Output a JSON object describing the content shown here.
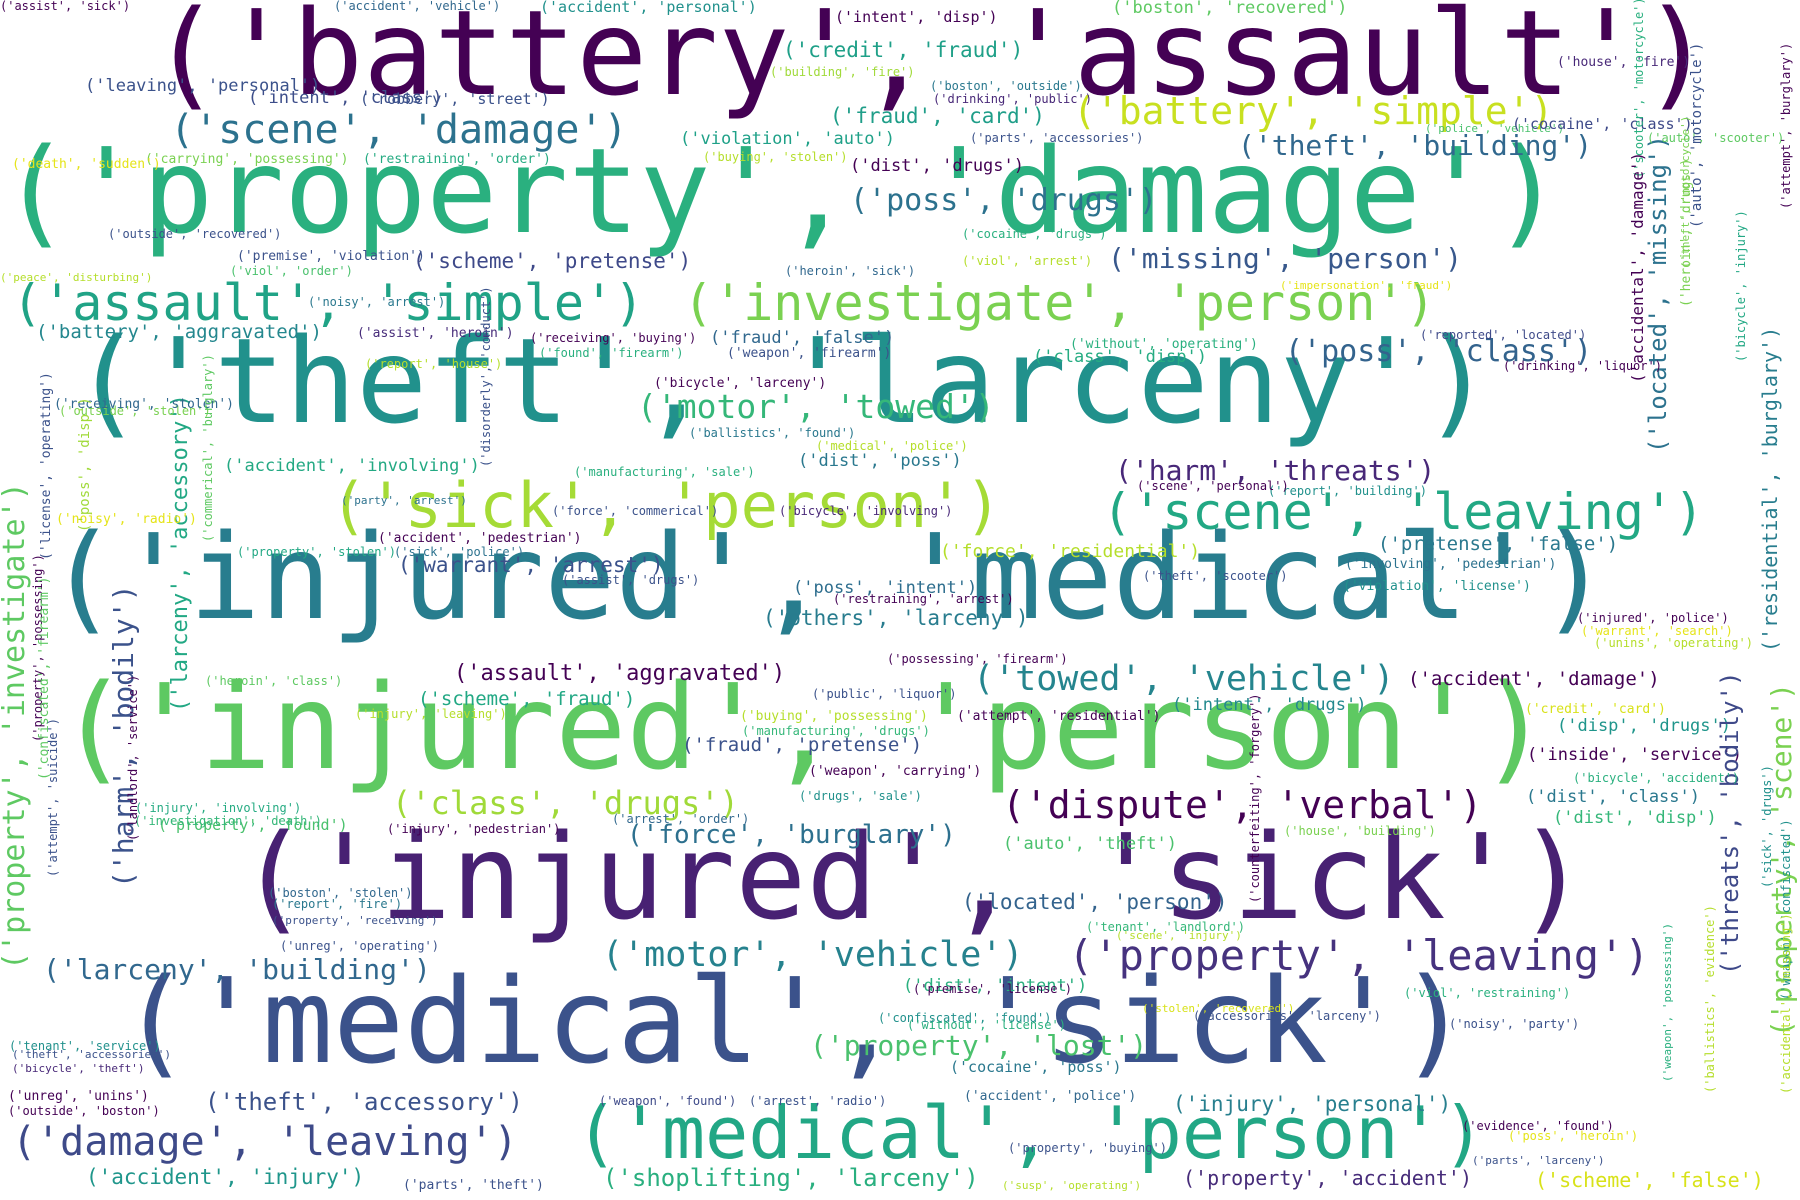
{
  "words": [
    {
      "text": "('battery', 'assault')",
      "color": "#440154"
    },
    {
      "text": "('property', 'damage')",
      "color": "#2ab07f"
    },
    {
      "text": "('theft', 'larceny')",
      "color": "#21918c"
    },
    {
      "text": "('injured', 'medical')",
      "color": "#287d8e"
    },
    {
      "text": "('injured', 'person')",
      "color": "#5ec962"
    },
    {
      "text": "('injured', 'sick')",
      "color": "#482173"
    },
    {
      "text": "('medical', 'sick')",
      "color": "#3b528b"
    },
    {
      "text": "('sick', 'person')",
      "color": "#a5db36"
    },
    {
      "text": "('assault', 'simple')",
      "color": "#20a386"
    },
    {
      "text": "('investigate', 'person')",
      "color": "#7ad151"
    },
    {
      "text": "('medical', 'person')",
      "color": "#22a785"
    },
    {
      "text": "('scene', 'leaving')",
      "color": "#22a884"
    },
    {
      "text": "('scene', 'damage')",
      "color": "#2c728e"
    },
    {
      "text": "('battery', 'simple')",
      "color": "#c8e020"
    },
    {
      "text": "('damage', 'leaving')",
      "color": "#3e4a89"
    },
    {
      "text": "('property', 'leaving')",
      "color": "#46327e"
    },
    {
      "text": "('towed', 'vehicle')",
      "color": "#25858e"
    },
    {
      "text": "('motor', 'vehicle')",
      "color": "#26828e"
    },
    {
      "text": "('dispute', 'verbal')",
      "color": "#440154"
    },
    {
      "text": "('motor', 'towed')",
      "color": "#35b779"
    },
    {
      "text": "('theft', 'building')",
      "color": "#31688e"
    },
    {
      "text": "('poss', 'drugs')",
      "color": "#2c728e"
    },
    {
      "text": "('poss', 'class')",
      "color": "#33638d"
    },
    {
      "text": "('missing', 'person')",
      "color": "#38588c"
    },
    {
      "text": "('harm', 'threats')",
      "color": "#482878"
    },
    {
      "text": "('class', 'drugs')",
      "color": "#a0da39"
    },
    {
      "text": "('larceny', 'building')",
      "color": "#31688e"
    },
    {
      "text": "('shoplifting', 'larceny')",
      "color": "#29af7f"
    },
    {
      "text": "('property', 'lost')",
      "color": "#4ac16d"
    },
    {
      "text": "('force', 'burglary')",
      "color": "#2d708e"
    },
    {
      "text": "('theft', 'accessory')",
      "color": "#3b528b"
    },
    {
      "text": "('assault', 'aggravated')",
      "color": "#440154"
    },
    {
      "text": "('fraud', 'card')",
      "color": "#1f9e89"
    },
    {
      "text": "('credit', 'fraud')",
      "color": "#1fa088"
    },
    {
      "text": "('warrant', 'arrest')",
      "color": "#3b528b"
    },
    {
      "text": "('others', 'larceny')",
      "color": "#287c8e"
    },
    {
      "text": "('accident', 'injury')",
      "color": "#1f968b"
    },
    {
      "text": "('property', 'accident')",
      "color": "#472c7a"
    },
    {
      "text": "('scheme', 'false')",
      "color": "#d8e219"
    },
    {
      "text": "('scheme', 'pretense')",
      "color": "#3e4989"
    },
    {
      "text": "('located', 'person')",
      "color": "#33638d"
    },
    {
      "text": "('injury', 'personal')",
      "color": "#277f8e"
    },
    {
      "text": "('pretense', 'false')",
      "color": "#2a788e"
    },
    {
      "text": "('fraud', 'pretense')",
      "color": "#3b528b"
    },
    {
      "text": "('accident', 'damage')",
      "color": "#440154"
    },
    {
      "text": "('scheme', 'fraud')",
      "color": "#22a884"
    },
    {
      "text": "('battery', 'aggravated')",
      "color": "#24878e"
    },
    {
      "text": "('intent', 'class')",
      "color": "#3d4e8a"
    },
    {
      "text": "('dist', 'drugs')",
      "color": "#440154"
    },
    {
      "text": "('accident', 'involving')",
      "color": "#23a983"
    },
    {
      "text": "('violation', 'auto')",
      "color": "#1fa188"
    },
    {
      "text": "('fraud', 'false')",
      "color": "#31688e"
    },
    {
      "text": "('class', 'disp')",
      "color": "#25ac82"
    },
    {
      "text": "('dist', 'poss')",
      "color": "#2a788e"
    },
    {
      "text": "('poss', 'intent')",
      "color": "#2e6e8e"
    },
    {
      "text": "('intent', 'drugs')",
      "color": "#23898e"
    },
    {
      "text": "('dist', 'intent')",
      "color": "#2ab07f"
    },
    {
      "text": "('dist', 'class')",
      "color": "#2a788e"
    },
    {
      "text": "('disp', 'drugs')",
      "color": "#1f958b"
    },
    {
      "text": "('dist', 'disp')",
      "color": "#35b779"
    },
    {
      "text": "('inside', 'service')",
      "color": "#440154"
    },
    {
      "text": "('auto', 'theft')",
      "color": "#4ac16d"
    },
    {
      "text": "('robbery', 'street')",
      "color": "#3b528b"
    },
    {
      "text": "('boston', 'recovered')",
      "color": "#5ec962"
    },
    {
      "text": "('force', 'residential')",
      "color": "#b5de2b"
    },
    {
      "text": "('property', 'found')",
      "color": "#4ac16d"
    },
    {
      "text": "('cocaine', 'poss')",
      "color": "#2a788e"
    },
    {
      "text": "('intent', 'disp')",
      "color": "#440154"
    },
    {
      "text": "('accident', 'pedestrian')",
      "color": "#440154"
    },
    {
      "text": "('carrying', 'possessing')",
      "color": "#7ad151"
    },
    {
      "text": "('restraining', 'order')",
      "color": "#25ab82"
    },
    {
      "text": "('accident', 'personal')",
      "color": "#21918c"
    },
    {
      "text": "('harm', 'bodily')",
      "color": "#3b528b",
      "vertical": true
    },
    {
      "text": "('larceny', 'accessory')",
      "color": "#22a884",
      "vertical": true
    },
    {
      "text": "('property', 'investigate')",
      "color": "#5ec962",
      "vertical": true
    },
    {
      "text": "('located', 'missing')",
      "color": "#2c728e",
      "vertical": true
    },
    {
      "text": "('residential', 'burglary')",
      "color": "#287d8e",
      "vertical": true
    },
    {
      "text": "('threats', 'bodily')",
      "color": "#3e4989",
      "vertical": true
    },
    {
      "text": "('property', 'scene')",
      "color": "#7ad151",
      "vertical": true
    },
    {
      "text": "('buying', 'stolen')",
      "color": "#b5de2b"
    },
    {
      "text": "('house', 'fire')",
      "color": "#482878"
    },
    {
      "text": "('building', 'fire')",
      "color": "#a0da39"
    },
    {
      "text": "('boston', 'outside')",
      "color": "#2a788e"
    },
    {
      "text": "('drinking', 'public')",
      "color": "#482878"
    },
    {
      "text": "('parts', 'accessories')",
      "color": "#3b528b"
    },
    {
      "text": "('police', 'vehicle')",
      "color": "#4ac16d"
    },
    {
      "text": "('cocaine', 'class')",
      "color": "#3e4a89"
    },
    {
      "text": "('auto', 'scooter')",
      "color": "#5ec962"
    },
    {
      "text": "('cocaine', 'drugs')",
      "color": "#2ab07f"
    },
    {
      "text": "('premise', 'violation')",
      "color": "#3b528b"
    },
    {
      "text": "('viol', 'order')",
      "color": "#4ac16d"
    },
    {
      "text": "('viol', 'arrest')",
      "color": "#b5de2b"
    },
    {
      "text": "('heroin', 'sick')",
      "color": "#31688e"
    },
    {
      "text": "('impersonation', 'fraud')",
      "color": "#e5e419"
    },
    {
      "text": "('noisy', 'arrest')",
      "color": "#2a788e"
    },
    {
      "text": "('assist', 'heroin')",
      "color": "#472c7a"
    },
    {
      "text": "('receiving', 'buying')",
      "color": "#440154"
    },
    {
      "text": "('found', 'firearm')",
      "color": "#2ab07f"
    },
    {
      "text": "('weapon', 'firearm')",
      "color": "#3b528b"
    },
    {
      "text": "('without', 'operating')",
      "color": "#2ab07f"
    },
    {
      "text": "('reported', 'located')",
      "color": "#3e4a89"
    },
    {
      "text": "('drinking', 'liquor')",
      "color": "#440154"
    },
    {
      "text": "('report', 'house')",
      "color": "#b5de2b"
    },
    {
      "text": "('bicycle', 'larceny')",
      "color": "#440154"
    },
    {
      "text": "('outside', 'stolen')",
      "color": "#7ad151"
    },
    {
      "text": "('ballistics', 'found')",
      "color": "#2a788e"
    },
    {
      "text": "('medical', 'police')",
      "color": "#b5de2b"
    },
    {
      "text": "('manufacturing', 'sale')",
      "color": "#2ab07f"
    },
    {
      "text": "('report', 'building')",
      "color": "#21918c"
    },
    {
      "text": "('scene', 'personal')",
      "color": "#440154"
    },
    {
      "text": "('party', 'arrest')",
      "color": "#2c728e"
    },
    {
      "text": "('force', 'commerical')",
      "color": "#3b528b"
    },
    {
      "text": "('bicycle', 'involving')",
      "color": "#482878"
    },
    {
      "text": "('property', 'stolen')",
      "color": "#22a884"
    },
    {
      "text": "('sick', 'police')",
      "color": "#2c728e"
    },
    {
      "text": "('assist', 'drugs')",
      "color": "#3b528b"
    },
    {
      "text": "('theft', 'scooter')",
      "color": "#3b528b"
    },
    {
      "text": "('involving', 'pedestrian')",
      "color": "#2c728e"
    },
    {
      "text": "('violation', 'license')",
      "color": "#21918c"
    },
    {
      "text": "('restraining', 'arrest')",
      "color": "#440154"
    },
    {
      "text": "('possessing', 'firearm')",
      "color": "#440154"
    },
    {
      "text": "('injured', 'police')",
      "color": "#440154"
    },
    {
      "text": "('warrant', 'search')",
      "color": "#e5e419"
    },
    {
      "text": "('unins', 'operating')",
      "color": "#b5de2b"
    },
    {
      "text": "('heroin', 'class')",
      "color": "#5ec962"
    },
    {
      "text": "('public', 'liquor')",
      "color": "#3b528b"
    },
    {
      "text": "('injury', 'leaving')",
      "color": "#b5de2b"
    },
    {
      "text": "('buying', 'possessing')",
      "color": "#b5de2b"
    },
    {
      "text": "('attempt', 'residential')",
      "color": "#440154"
    },
    {
      "text": "('credit', 'card')",
      "color": "#d8e219"
    },
    {
      "text": "('manufacturing', 'drugs')",
      "color": "#35b779"
    },
    {
      "text": "('weapon', 'carrying')",
      "color": "#440154"
    },
    {
      "text": "('injury', 'involving')",
      "color": "#25ab82"
    },
    {
      "text": "('bicycle', 'accident')",
      "color": "#2ab07f"
    },
    {
      "text": "('drugs', 'sale')",
      "color": "#21918c"
    },
    {
      "text": "('investigation', 'death')",
      "color": "#35b779"
    },
    {
      "text": "('arrest', 'order')",
      "color": "#31688e"
    },
    {
      "text": "('injury', 'pedestrian')",
      "color": "#440154"
    },
    {
      "text": "('house', 'building')",
      "color": "#7ad151"
    },
    {
      "text": "('boston', 'stolen')",
      "color": "#31688e"
    },
    {
      "text": "('property', 'receiving')",
      "color": "#3b528b"
    },
    {
      "text": "('report', 'fire')",
      "color": "#2a788e"
    },
    {
      "text": "('tenant', 'landlord')",
      "color": "#35b779"
    },
    {
      "text": "('scene', 'injury')",
      "color": "#b5de2b"
    },
    {
      "text": "('unreg', 'operating')",
      "color": "#3b528b"
    },
    {
      "text": "('premise', 'license')",
      "color": "#440154"
    },
    {
      "text": "('confiscated', 'found')",
      "color": "#21918c"
    },
    {
      "text": "('stolen', 'recovered')",
      "color": "#d8e219"
    },
    {
      "text": "('accessories', 'larceny')",
      "color": "#3b528b"
    },
    {
      "text": "('viol', 'restraining')",
      "color": "#2ab07f"
    },
    {
      "text": "('without', 'license')",
      "color": "#2ab07f"
    },
    {
      "text": "('tenant', 'service')",
      "color": "#21918c"
    },
    {
      "text": "('theft', 'accessories')",
      "color": "#3b528b"
    },
    {
      "text": "('bicycle', 'theft')",
      "color": "#482878"
    },
    {
      "text": "('noisy', 'party')",
      "color": "#3b528b"
    },
    {
      "text": "('unreg', 'unins')",
      "color": "#440154"
    },
    {
      "text": "('outside', 'boston')",
      "color": "#440154"
    },
    {
      "text": "('weapon', 'found')",
      "color": "#3e4a89"
    },
    {
      "text": "('arrest', 'radio')",
      "color": "#3b528b"
    },
    {
      "text": "('accident', 'police')",
      "color": "#31688e"
    },
    {
      "text": "('evidence', 'found')",
      "color": "#440154"
    },
    {
      "text": "('poss', 'heroin')",
      "color": "#e5e419"
    },
    {
      "text": "('property', 'buying')",
      "color": "#3b528b"
    },
    {
      "text": "('parts', 'larceny')",
      "color": "#3b528b"
    },
    {
      "text": "('parts', 'theft')",
      "color": "#3b528b"
    },
    {
      "text": "('susp', 'operating')",
      "color": "#b5de2b"
    },
    {
      "text": "('accident', 'vehicle')",
      "color": "#31688e"
    },
    {
      "text": "('assist', 'sick')",
      "color": "#440154"
    },
    {
      "text": "('death', 'sudden')",
      "color": "#e5e419"
    },
    {
      "text": "('leaving', 'personal')",
      "color": "#3b528b"
    },
    {
      "text": "('outside', 'recovered')",
      "color": "#3b528b"
    },
    {
      "text": "('peace', 'disturbing')",
      "color": "#b5de2b"
    },
    {
      "text": "('noisy', 'radio')",
      "color": "#e5e419"
    },
    {
      "text": "('receiving', 'stolen')",
      "color": "#31688e"
    },
    {
      "text": "('license', 'operating')",
      "color": "#3b528b",
      "vertical": true
    },
    {
      "text": "('poss', 'disp')",
      "color": "#a0da39",
      "vertical": true
    },
    {
      "text": "('property', 'possessing')",
      "color": "#440154",
      "vertical": true
    },
    {
      "text": "('confiscated', 'firearm')",
      "color": "#5ec962",
      "vertical": true
    },
    {
      "text": "('landlord', 'service')",
      "color": "#440154",
      "vertical": true
    },
    {
      "text": "('attempt', 'suicide')",
      "color": "#3b528b",
      "vertical": true
    },
    {
      "text": "('commerical', 'burglary')",
      "color": "#5ec962",
      "vertical": true
    },
    {
      "text": "('disorderly', 'conduct')",
      "color": "#3b528b",
      "vertical": true
    },
    {
      "text": "('scooter', 'motorcycle')",
      "color": "#2ab07f",
      "vertical": true
    },
    {
      "text": "('heroin', 'drugs')",
      "color": "#7ad151",
      "vertical": true
    },
    {
      "text": "('auto', 'motorcycle')",
      "color": "#3b528b",
      "vertical": true
    },
    {
      "text": "('theft', 'motorcycle')",
      "color": "#7ad151",
      "vertical": true
    },
    {
      "text": "('bicycle', 'injury')",
      "color": "#22a884",
      "vertical": true
    },
    {
      "text": "('attempt', 'burglary')",
      "color": "#440154",
      "vertical": true
    },
    {
      "text": "('accidental', 'damage')",
      "color": "#440154",
      "vertical": true
    },
    {
      "text": "('counterfeiting', 'forgery')",
      "color": "#440154",
      "vertical": true
    },
    {
      "text": "('sick', 'drugs')",
      "color": "#21918c",
      "vertical": true
    },
    {
      "text": "('weapon', 'confiscated')",
      "color": "#21918c",
      "vertical": true
    },
    {
      "text": "('weapon', 'possessing')",
      "color": "#2ab07f",
      "vertical": true
    },
    {
      "text": "('ballistics', 'evidence')",
      "color": "#b5de2b",
      "vertical": true
    },
    {
      "text": "('accidental', 'missing')",
      "color": "#b5de2b",
      "vertical": true
    },
    {
      "text": "('property', 'accidental')",
      "color": "#b5de2b",
      "vertical": true
    },
    {
      "text": "('stolen', 'possessing')",
      "color": "#e5e419",
      "vertical": true
    },
    {
      "text": "('property', 'missing')",
      "color": "#b5de2b",
      "vertical": true
    },
    {
      "text": "('party', 'radio')",
      "color": "#3b528b",
      "vertical": true
    },
    {
      "text": "('carrying', 'firearm')",
      "color": "#2ab07f",
      "vertical": true
    },
    {
      "text": "('receiving', 'possessing')",
      "color": "#2ab07f",
      "vertical": true
    }
  ]
}
